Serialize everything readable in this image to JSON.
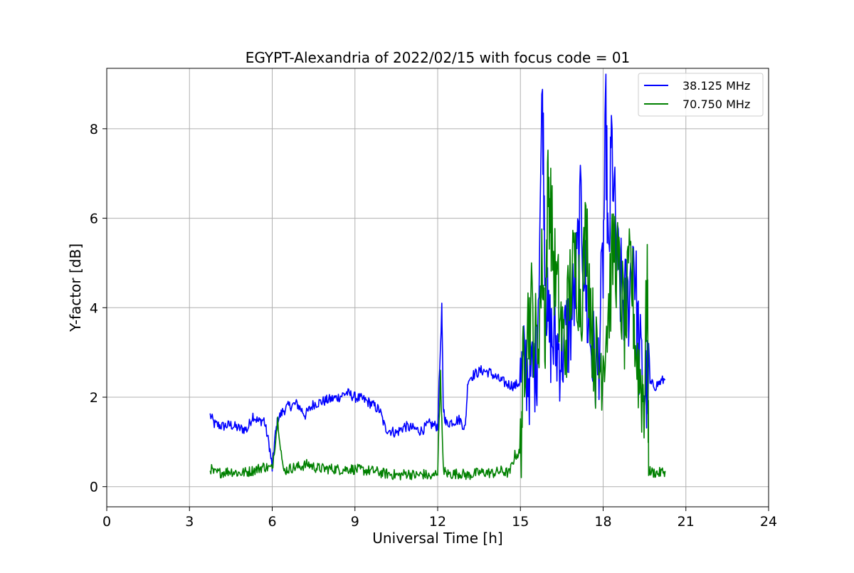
{
  "chart_data": {
    "type": "line",
    "title": "EGYPT-Alexandria of 2022/02/15 with focus code = 01",
    "xlabel": "Universal Time [h]",
    "ylabel": "Y-factor [dB]",
    "xlim": [
      0,
      24
    ],
    "ylim": [
      -0.45,
      9.35
    ],
    "xticks": [
      0,
      3,
      6,
      9,
      12,
      15,
      18,
      21,
      24
    ],
    "yticks": [
      0,
      2,
      4,
      6,
      8
    ],
    "grid": true,
    "legend_position": "top-right",
    "series": [
      {
        "name": "38.125 MHz",
        "color": "#0000ff",
        "x": [
          3.75,
          3.9,
          4.2,
          4.5,
          4.8,
          5.1,
          5.3,
          5.5,
          5.7,
          5.9,
          6.0,
          6.1,
          6.2,
          6.4,
          6.6,
          6.9,
          7.2,
          7.5,
          7.8,
          8.1,
          8.4,
          8.7,
          9.0,
          9.3,
          9.6,
          9.9,
          10.1,
          10.3,
          10.5,
          10.8,
          11.1,
          11.4,
          11.7,
          12.0,
          12.15,
          12.2,
          12.3,
          12.5,
          12.8,
          13.0,
          13.1,
          13.3,
          13.6,
          13.9,
          14.2,
          14.5,
          14.8,
          15.0,
          15.2,
          15.4,
          15.6,
          15.8,
          15.9,
          16.0,
          16.2,
          16.5,
          16.8,
          17.0,
          17.2,
          17.4,
          17.6,
          17.8,
          18.0,
          18.1,
          18.2,
          18.3,
          18.5,
          18.7,
          18.9,
          19.1,
          19.3,
          19.5,
          19.7,
          19.9,
          20.1,
          20.25
        ],
        "y": [
          1.6,
          1.4,
          1.35,
          1.38,
          1.3,
          1.28,
          1.6,
          1.45,
          1.5,
          0.9,
          0.4,
          1.1,
          1.5,
          1.7,
          1.8,
          1.85,
          1.6,
          1.85,
          1.9,
          1.95,
          2.0,
          2.1,
          2.0,
          1.95,
          1.85,
          1.7,
          1.3,
          1.25,
          1.2,
          1.35,
          1.3,
          1.25,
          1.4,
          1.35,
          4.0,
          1.8,
          1.4,
          1.45,
          1.5,
          1.3,
          2.4,
          2.5,
          2.6,
          2.55,
          2.4,
          2.3,
          2.25,
          2.35,
          2.7,
          2.4,
          3.0,
          8.8,
          5.0,
          3.5,
          3.2,
          3.0,
          3.6,
          4.5,
          6.2,
          4.0,
          3.0,
          2.5,
          5.0,
          8.2,
          4.5,
          7.8,
          5.0,
          4.2,
          4.0,
          5.5,
          3.0,
          2.2,
          2.3,
          2.25,
          2.35,
          2.4
        ]
      },
      {
        "name": "70.750 MHz",
        "color": "#008000",
        "x": [
          3.75,
          3.9,
          4.2,
          4.5,
          4.8,
          5.1,
          5.4,
          5.7,
          6.0,
          6.2,
          6.4,
          6.7,
          7.0,
          7.3,
          7.6,
          7.9,
          8.2,
          8.5,
          8.8,
          9.1,
          9.4,
          9.7,
          10.0,
          10.3,
          10.6,
          10.9,
          11.2,
          11.5,
          11.8,
          12.0,
          12.1,
          12.2,
          12.3,
          12.5,
          12.8,
          13.1,
          13.4,
          13.7,
          14.0,
          14.3,
          14.6,
          14.8,
          15.0,
          15.1,
          15.2,
          15.4,
          15.6,
          15.8,
          15.9,
          16.0,
          16.1,
          16.2,
          16.4,
          16.6,
          16.8,
          17.0,
          17.2,
          17.4,
          17.6,
          17.8,
          18.0,
          18.2,
          18.4,
          18.6,
          18.8,
          19.0,
          19.2,
          19.4,
          19.5,
          19.6,
          19.65,
          19.8,
          20.0,
          20.25
        ],
        "y": [
          0.42,
          0.3,
          0.32,
          0.35,
          0.3,
          0.33,
          0.38,
          0.45,
          0.4,
          1.5,
          0.35,
          0.42,
          0.45,
          0.5,
          0.42,
          0.4,
          0.4,
          0.38,
          0.4,
          0.38,
          0.36,
          0.35,
          0.3,
          0.28,
          0.25,
          0.3,
          0.25,
          0.28,
          0.2,
          0.35,
          2.5,
          0.4,
          0.3,
          0.28,
          0.3,
          0.25,
          0.3,
          0.32,
          0.3,
          0.35,
          0.3,
          0.7,
          0.75,
          2.5,
          3.5,
          4.0,
          3.0,
          5.0,
          3.5,
          6.8,
          6.2,
          5.0,
          4.0,
          3.0,
          4.5,
          5.0,
          4.2,
          5.8,
          3.5,
          2.5,
          3.0,
          4.0,
          5.5,
          4.5,
          3.5,
          5.0,
          3.0,
          2.2,
          2.0,
          5.0,
          0.35,
          0.32,
          0.3,
          0.35
        ]
      }
    ]
  }
}
